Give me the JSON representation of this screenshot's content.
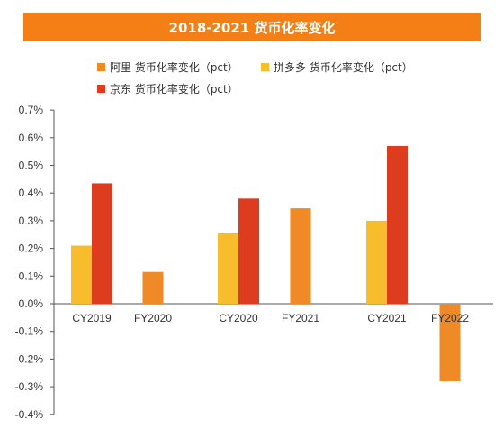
{
  "chart_data": {
    "type": "bar",
    "title": "2018-2021 货币化率变化",
    "categories": [
      "CY2019",
      "FY2020",
      "CY2020",
      "FY2021",
      "CY2021",
      "FY2022"
    ],
    "series": [
      {
        "name": "阿里 货币化率变化（pct）",
        "color": "#f08a26",
        "values": [
          null,
          0.115,
          null,
          0.345,
          null,
          -0.28
        ]
      },
      {
        "name": "拼多多 货币化率变化（pct）",
        "color": "#f7bd2d",
        "values": [
          0.21,
          null,
          0.255,
          null,
          0.3,
          null
        ]
      },
      {
        "name": "京东 货币化率变化（pct）",
        "color": "#dd3c1e",
        "values": [
          0.435,
          null,
          0.38,
          null,
          0.57,
          null
        ]
      }
    ],
    "ylim": [
      -0.4,
      0.7
    ],
    "yticks": [
      "0.7%",
      "0.6%",
      "0.5%",
      "0.4%",
      "0.3%",
      "0.2%",
      "0.1%",
      "0.0%",
      "-0.1%",
      "-0.2%",
      "-0.3%",
      "-0.4%"
    ],
    "ytick_values": [
      0.7,
      0.6,
      0.5,
      0.4,
      0.3,
      0.2,
      0.1,
      0.0,
      -0.1,
      -0.2,
      -0.3,
      -0.4
    ],
    "legend_position": "top",
    "grid": false
  }
}
